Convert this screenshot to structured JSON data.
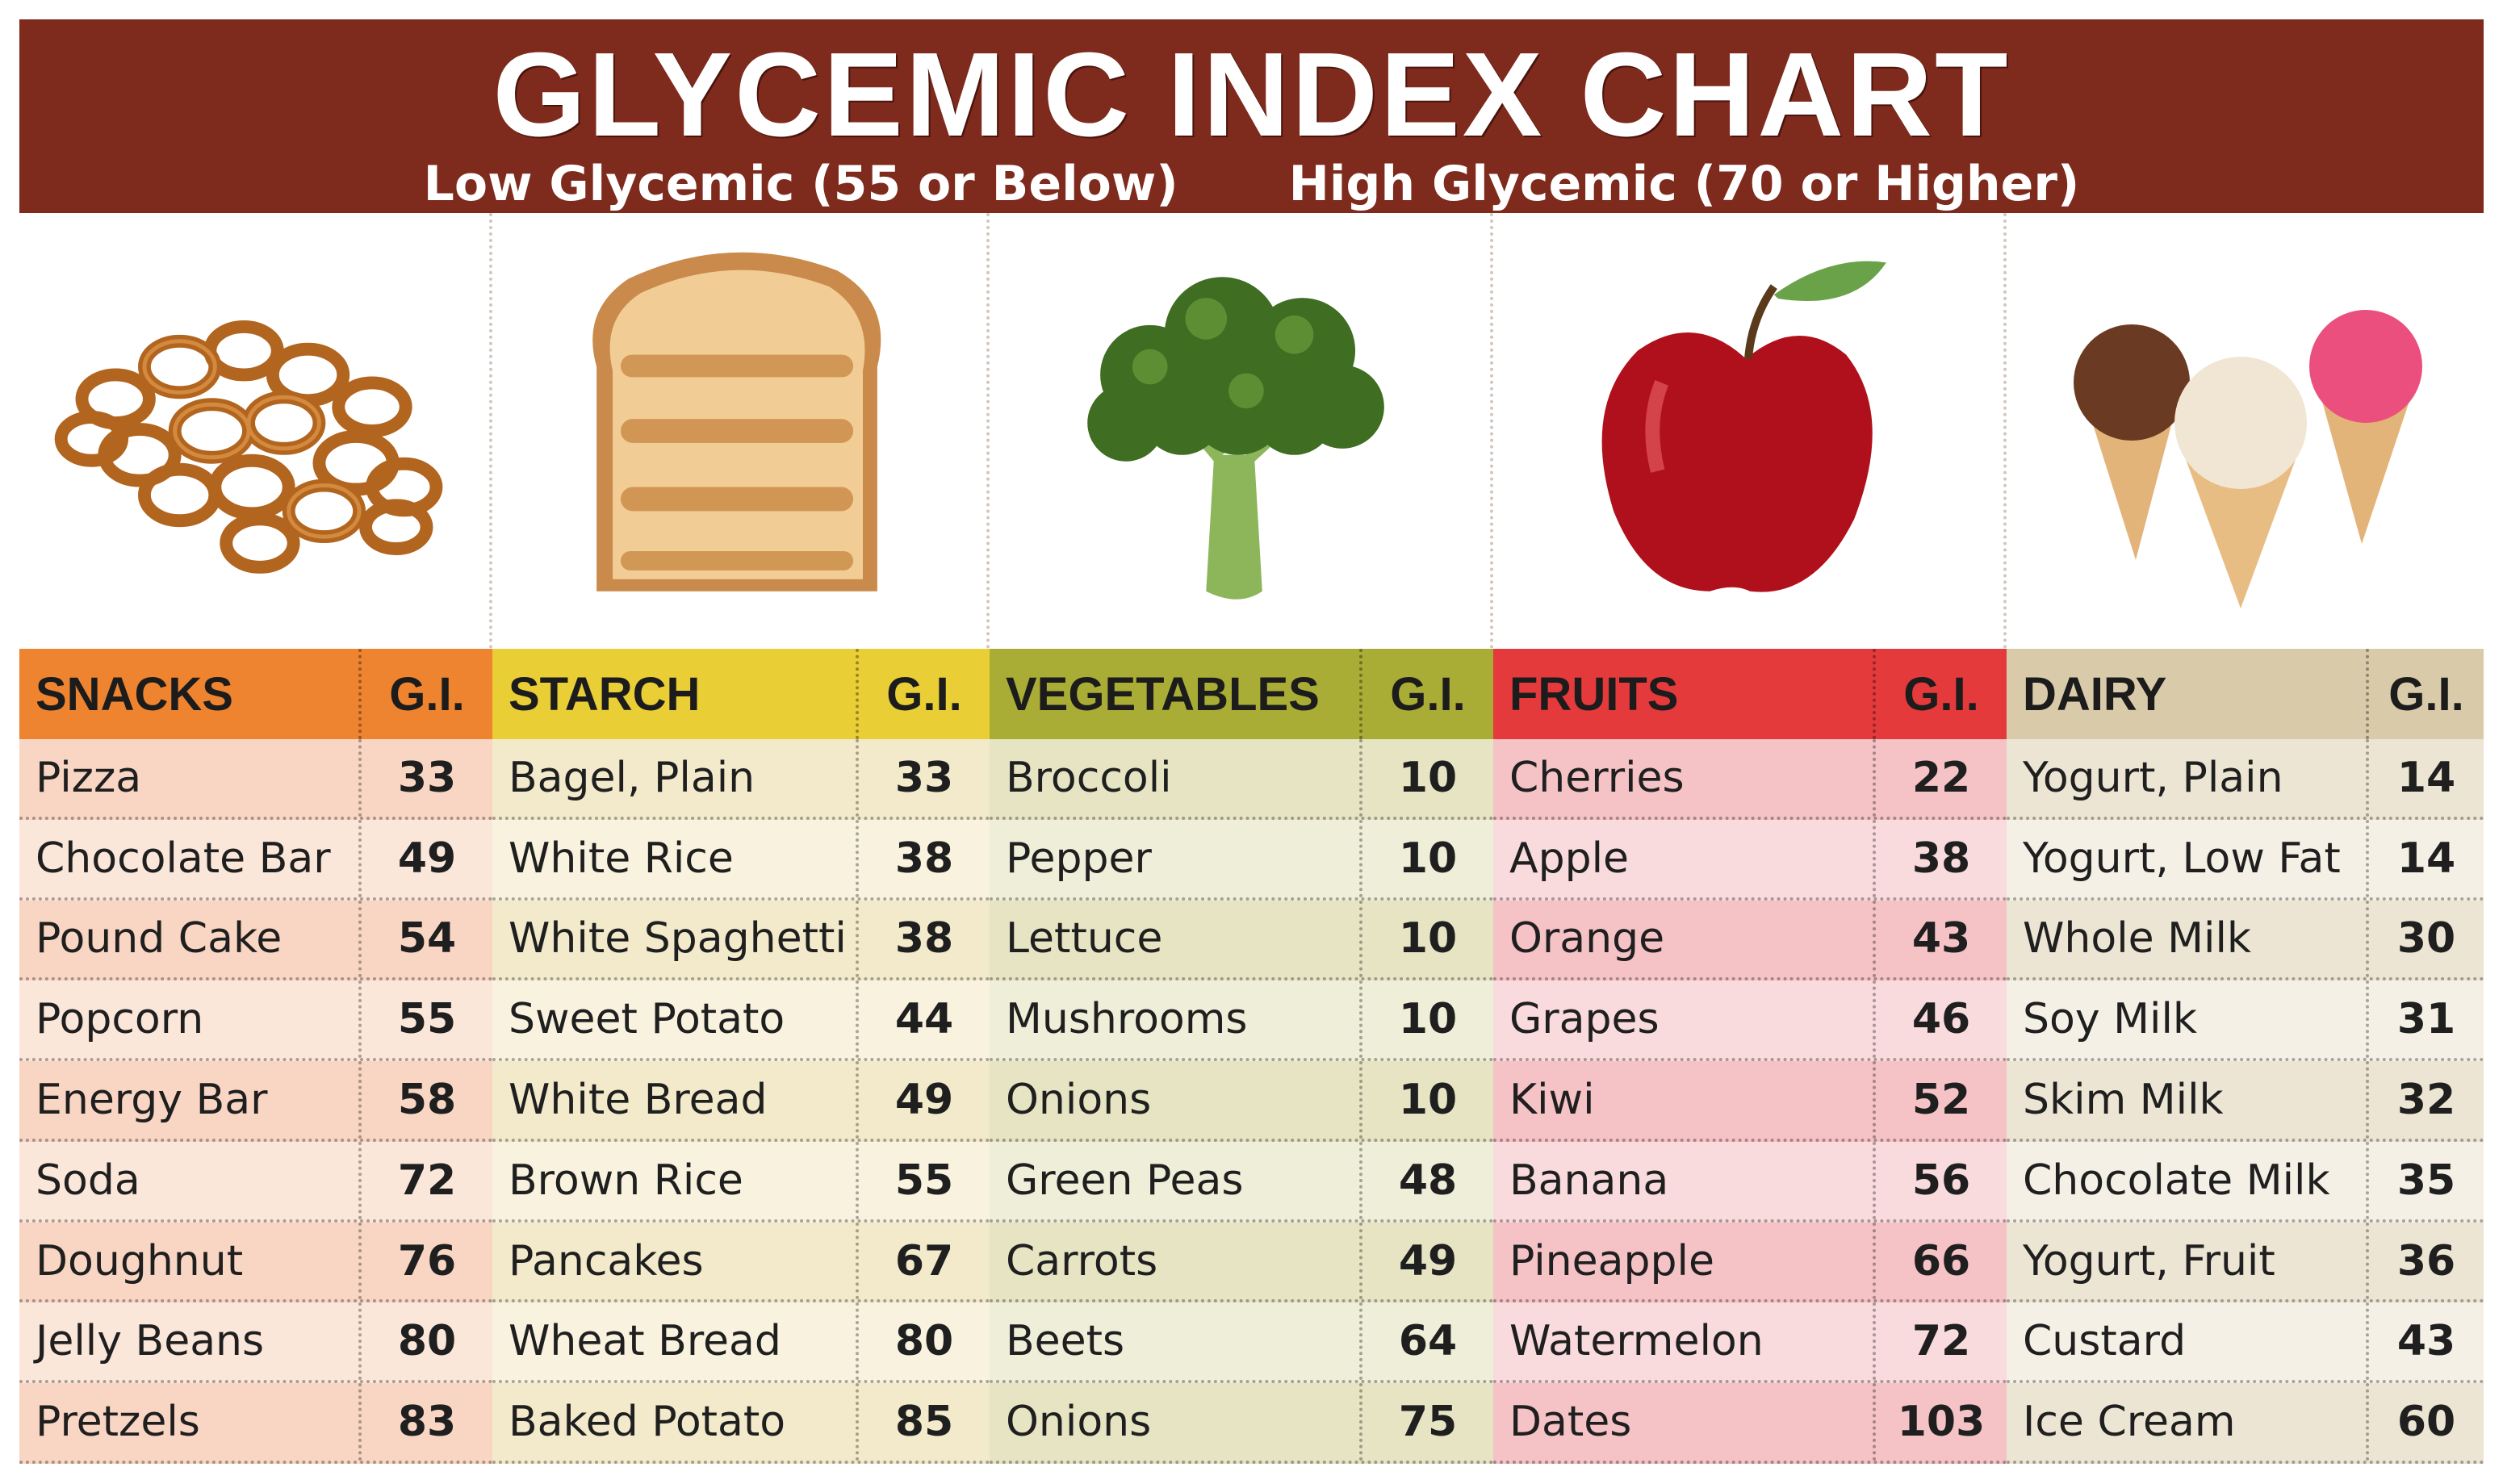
{
  "header": {
    "title": "GLYCEMIC INDEX CHART",
    "low_label": "Low Glycemic (55 or Below)",
    "high_label": "High Glycemic (70 or Higher)"
  },
  "colors": {
    "header_bg": "#7e2a1d",
    "snacks_head": "#ef8430",
    "starch_head": "#e9ce36",
    "vegetables_head": "#a9ad35",
    "fruits_head": "#e53a3c",
    "dairy_head": "#d9cba9"
  },
  "images": {
    "snacks": "pretzels-image",
    "starch": "toast-image",
    "vegetables": "broccoli-image",
    "fruits": "apple-image",
    "dairy": "ice-cream-image"
  },
  "gi_header": "G.I.",
  "columns": [
    {
      "name": "SNACKS",
      "rows": [
        {
          "food": "Pizza",
          "gi": "33"
        },
        {
          "food": "Chocolate Bar",
          "gi": "49"
        },
        {
          "food": "Pound Cake",
          "gi": "54"
        },
        {
          "food": "Popcorn",
          "gi": "55"
        },
        {
          "food": "Energy Bar",
          "gi": "58"
        },
        {
          "food": "Soda",
          "gi": "72"
        },
        {
          "food": "Doughnut",
          "gi": "76"
        },
        {
          "food": "Jelly Beans",
          "gi": "80"
        },
        {
          "food": "Pretzels",
          "gi": "83"
        }
      ]
    },
    {
      "name": "STARCH",
      "rows": [
        {
          "food": "Bagel, Plain",
          "gi": "33"
        },
        {
          "food": "White Rice",
          "gi": "38"
        },
        {
          "food": "White Spaghetti",
          "gi": "38"
        },
        {
          "food": "Sweet Potato",
          "gi": "44"
        },
        {
          "food": "White Bread",
          "gi": "49"
        },
        {
          "food": "Brown Rice",
          "gi": "55"
        },
        {
          "food": "Pancakes",
          "gi": "67"
        },
        {
          "food": "Wheat Bread",
          "gi": "80"
        },
        {
          "food": "Baked Potato",
          "gi": "85"
        }
      ]
    },
    {
      "name": "VEGETABLES",
      "rows": [
        {
          "food": "Broccoli",
          "gi": "10"
        },
        {
          "food": "Pepper",
          "gi": "10"
        },
        {
          "food": "Lettuce",
          "gi": "10"
        },
        {
          "food": "Mushrooms",
          "gi": "10"
        },
        {
          "food": "Onions",
          "gi": "10"
        },
        {
          "food": "Green Peas",
          "gi": "48"
        },
        {
          "food": "Carrots",
          "gi": "49"
        },
        {
          "food": "Beets",
          "gi": "64"
        },
        {
          "food": "Onions",
          "gi": "75"
        }
      ]
    },
    {
      "name": "FRUITS",
      "rows": [
        {
          "food": "Cherries",
          "gi": "22"
        },
        {
          "food": "Apple",
          "gi": "38"
        },
        {
          "food": "Orange",
          "gi": "43"
        },
        {
          "food": "Grapes",
          "gi": "46"
        },
        {
          "food": "Kiwi",
          "gi": "52"
        },
        {
          "food": "Banana",
          "gi": "56"
        },
        {
          "food": "Pineapple",
          "gi": "66"
        },
        {
          "food": "Watermelon",
          "gi": "72"
        },
        {
          "food": "Dates",
          "gi": "103"
        }
      ]
    },
    {
      "name": "DAIRY",
      "rows": [
        {
          "food": "Yogurt, Plain",
          "gi": "14"
        },
        {
          "food": "Yogurt, Low Fat",
          "gi": "14"
        },
        {
          "food": "Whole Milk",
          "gi": "30"
        },
        {
          "food": "Soy Milk",
          "gi": "31"
        },
        {
          "food": "Skim Milk",
          "gi": "32"
        },
        {
          "food": "Chocolate Milk",
          "gi": "35"
        },
        {
          "food": "Yogurt, Fruit",
          "gi": "36"
        },
        {
          "food": "Custard",
          "gi": "43"
        },
        {
          "food": "Ice Cream",
          "gi": "60"
        }
      ]
    }
  ]
}
